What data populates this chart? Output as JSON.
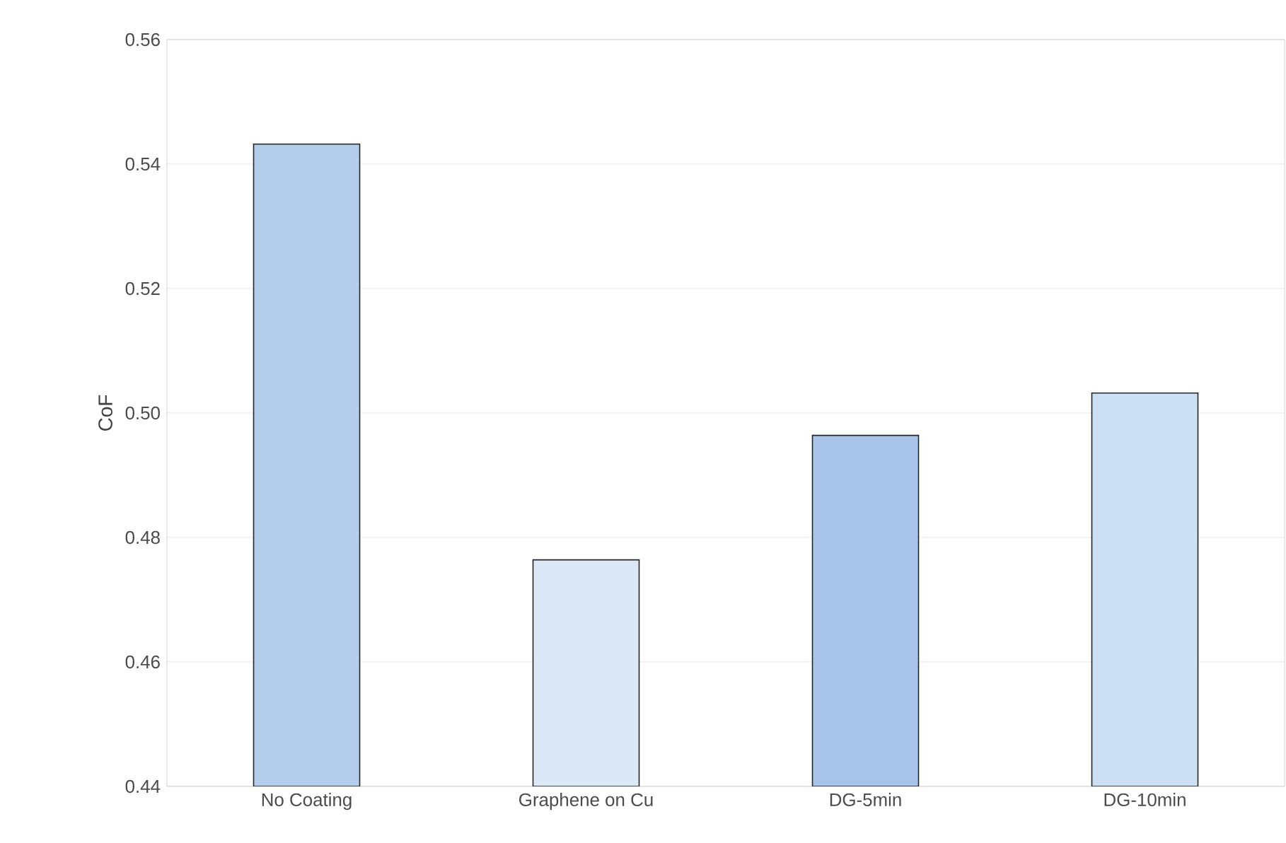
{
  "chart_data": {
    "type": "bar",
    "ylabel": "CoF",
    "categories": [
      "No Coating",
      "Graphene on Cu",
      "DG-5min",
      "DG-10min"
    ],
    "values": [
      0.5432,
      0.4764,
      0.4964,
      0.5032
    ],
    "colors": [
      "#b4cdea",
      "#dde8f6",
      "#a8c4ea",
      "#cddff3"
    ],
    "ylim": [
      0.44,
      0.56
    ],
    "yticks": [
      {
        "value": 0.44,
        "label": "0.44"
      },
      {
        "value": 0.46,
        "label": "0.46"
      },
      {
        "value": 0.48,
        "label": "0.48"
      },
      {
        "value": 0.5,
        "label": "0.50"
      },
      {
        "value": 0.52,
        "label": "0.52"
      },
      {
        "value": 0.54,
        "label": "0.54"
      },
      {
        "value": 0.56,
        "label": "0.56"
      }
    ],
    "grid": "y"
  }
}
